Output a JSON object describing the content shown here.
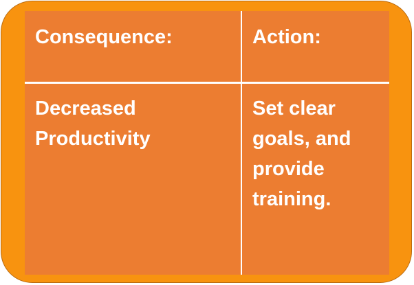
{
  "table": {
    "headers": {
      "consequence": "Consequence:",
      "action": "Action:"
    },
    "rows": [
      {
        "consequence": "Decreased Productivity",
        "action": "Set clear goals, and provide training."
      }
    ]
  },
  "colors": {
    "frame": "#f8930f",
    "cell": "#ec7d31",
    "text": "#ffffff",
    "divider": "#ffffff"
  }
}
